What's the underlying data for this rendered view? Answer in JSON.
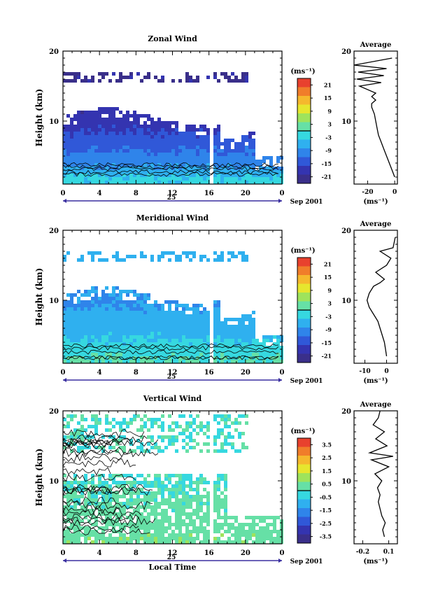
{
  "figure": {
    "panels": [
      {
        "title": "Zonal Wind",
        "colorbar_unit": "(ms⁻¹)",
        "colorbar_ticks": [
          "21",
          "15",
          "9",
          "3",
          "-3",
          "-9",
          "-15",
          "-21"
        ],
        "profile_title": "Average",
        "profile_xlabel": "(ms⁻¹)",
        "profile_xticks": [
          "-20",
          "0"
        ],
        "date_label": "Sep 2001"
      },
      {
        "title": "Meridional Wind",
        "colorbar_unit": "(ms⁻¹)",
        "colorbar_ticks": [
          "21",
          "15",
          "9",
          "3",
          "-3",
          "-9",
          "-15",
          "-21"
        ],
        "profile_title": "Average",
        "profile_xlabel": "(ms⁻¹)",
        "profile_xticks": [
          "-10",
          "0"
        ],
        "date_label": "Sep 2001"
      },
      {
        "title": "Vertical Wind",
        "colorbar_unit": "(ms⁻¹)",
        "colorbar_ticks": [
          "3.5",
          "2.5",
          "1.5",
          "0.5",
          "-0.5",
          "-1.5",
          "-2.5",
          "-3.5"
        ],
        "profile_title": "Average",
        "profile_xlabel": "(ms⁻¹)",
        "profile_xticks": [
          "-0.2",
          "0.1"
        ],
        "date_label": "Sep 2001"
      }
    ],
    "ylabel": "Height (km)",
    "xlabel": "Local Time",
    "day_label": "25",
    "colors": {
      "scale": [
        "#e8412e",
        "#f07d2a",
        "#f5b82d",
        "#e6e62e",
        "#9ee35c",
        "#66e0a6",
        "#36d8e0",
        "#2fb0ef",
        "#2f84ea",
        "#3058d8",
        "#3434b0",
        "#3a2f8a"
      ]
    }
  },
  "chart_data": [
    {
      "type": "heatmap",
      "title": "Zonal Wind",
      "ylabel": "Height (km)",
      "xlabel": "",
      "x_ticks": [
        "0",
        "4",
        "8",
        "12",
        "16",
        "20",
        "0"
      ],
      "y_ticks": [
        "10",
        "20"
      ],
      "xlim": [
        0,
        24
      ],
      "ylim": [
        1,
        20
      ],
      "colorbar_range": [
        -24,
        24
      ],
      "description_values": [
        {
          "height_km": 2,
          "value": -3
        },
        {
          "height_km": 4,
          "value": -9
        },
        {
          "height_km": 6,
          "value": -12
        },
        {
          "height_km": 8,
          "value": -15
        },
        {
          "height_km": 10,
          "value": -18
        },
        {
          "height_km": 16,
          "value": -21
        }
      ]
    },
    {
      "type": "line",
      "title": "Average",
      "xlabel": "(ms⁻¹)",
      "x_ticks": [
        "-20",
        "0"
      ],
      "y_ticks": [
        "10",
        "20"
      ],
      "xlim": [
        -30,
        2
      ],
      "ylim": [
        1,
        20
      ],
      "series": [
        {
          "x": [
            0,
            -2,
            -4,
            -6,
            -8,
            -10,
            -12,
            -13,
            -14,
            -15,
            -17,
            -17,
            -14,
            -17,
            -14,
            -26,
            -10,
            -28,
            -8,
            -27,
            -6,
            -30,
            -2
          ],
          "y": [
            2,
            3,
            4,
            5,
            6,
            7,
            8,
            9,
            10,
            11,
            12,
            12.5,
            13,
            13.5,
            14,
            15,
            15.5,
            16,
            16.5,
            17,
            17.5,
            18,
            19
          ]
        }
      ]
    },
    {
      "type": "heatmap",
      "title": "Meridional Wind",
      "ylabel": "Height (km)",
      "xlabel": "",
      "x_ticks": [
        "0",
        "4",
        "8",
        "12",
        "16",
        "20",
        "0"
      ],
      "y_ticks": [
        "10",
        "20"
      ],
      "xlim": [
        0,
        24
      ],
      "ylim": [
        1,
        20
      ],
      "colorbar_range": [
        -24,
        24
      ],
      "description_values": [
        {
          "height_km": 2,
          "value": 0
        },
        {
          "height_km": 4,
          "value": -3
        },
        {
          "height_km": 6,
          "value": -6
        },
        {
          "height_km": 8,
          "value": -6
        },
        {
          "height_km": 10,
          "value": -9
        },
        {
          "height_km": 16,
          "value": -6
        }
      ]
    },
    {
      "type": "line",
      "title": "Average",
      "xlabel": "(ms⁻¹)",
      "x_ticks": [
        "-10",
        "0"
      ],
      "y_ticks": [
        "10",
        "20"
      ],
      "xlim": [
        -15,
        5
      ],
      "ylim": [
        1,
        20
      ],
      "series": [
        {
          "x": [
            0,
            -0.5,
            -1,
            -2,
            -3,
            -4,
            -6,
            -8,
            -9,
            -8,
            -6,
            -3,
            -1,
            -5,
            0,
            2,
            -3,
            3,
            4
          ],
          "y": [
            2,
            3,
            4,
            5,
            6,
            7,
            8,
            9,
            10,
            11,
            12,
            12.5,
            13,
            14,
            15,
            16,
            17,
            17.5,
            19
          ]
        }
      ]
    },
    {
      "type": "heatmap",
      "title": "Vertical Wind",
      "ylabel": "Height (km)",
      "xlabel": "Local Time",
      "x_ticks": [
        "0",
        "4",
        "8",
        "12",
        "16",
        "20",
        "0"
      ],
      "y_ticks": [
        "10",
        "20"
      ],
      "xlim": [
        0,
        24
      ],
      "ylim": [
        1,
        20
      ],
      "colorbar_range": [
        -4,
        4
      ],
      "description_values": [
        {
          "height_km": 2,
          "value": 0.5
        },
        {
          "height_km": 6,
          "value": 0.2
        },
        {
          "height_km": 10,
          "value": 0.0
        },
        {
          "height_km": 16,
          "value": 0.0
        }
      ]
    },
    {
      "type": "line",
      "title": "Average",
      "xlabel": "(ms⁻¹)",
      "x_ticks": [
        "-0.2",
        "0.1"
      ],
      "y_ticks": [
        "10",
        "20"
      ],
      "xlim": [
        -0.3,
        0.2
      ],
      "ylim": [
        1,
        20
      ],
      "series": [
        {
          "x": [
            0.05,
            0.03,
            0.06,
            0.02,
            0.0,
            -0.02,
            0.0,
            -0.03,
            0.02,
            -0.06,
            0.1,
            -0.1,
            0.15,
            -0.12,
            0.08,
            -0.05,
            0.05,
            -0.08,
            -0.02,
            0.0
          ],
          "y": [
            2,
            3,
            4,
            5,
            6,
            7,
            8,
            9,
            10,
            11,
            12,
            13,
            13.5,
            14,
            15,
            16,
            17,
            18,
            19,
            20
          ]
        }
      ]
    }
  ]
}
